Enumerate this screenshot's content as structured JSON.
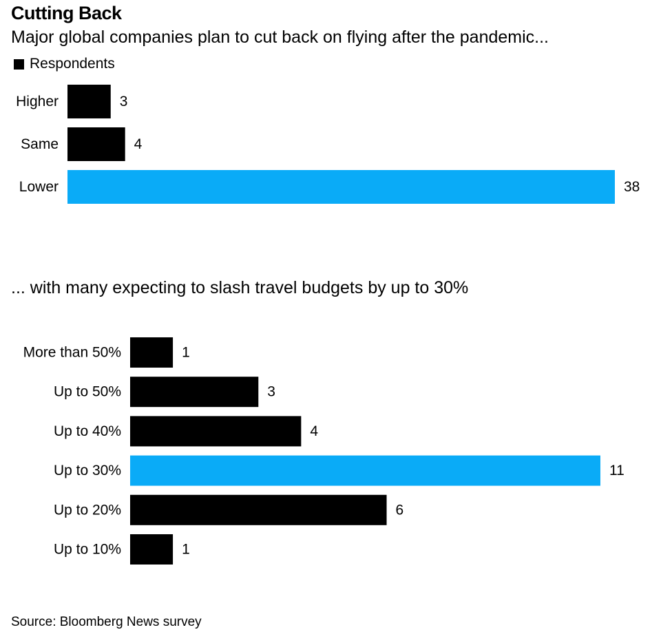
{
  "title": "Cutting Back",
  "subtitle": "Major global companies plan to cut back on flying after the pandemic...",
  "legend": {
    "label": "Respondents"
  },
  "subtitle2": "... with many expecting to slash travel budgets by up to 30%",
  "source": "Source: Bloomberg News survey",
  "colors": {
    "default": "#000000",
    "highlight": "#0aabf7"
  },
  "chart_data": [
    {
      "type": "bar",
      "orientation": "horizontal",
      "title": "",
      "categories": [
        "Higher",
        "Same",
        "Lower"
      ],
      "series": [
        {
          "name": "Respondents",
          "values": [
            3,
            4,
            38
          ]
        }
      ],
      "highlight": "Lower",
      "xlim": [
        0,
        38
      ],
      "grid": false,
      "legend": "top-left"
    },
    {
      "type": "bar",
      "orientation": "horizontal",
      "title": "",
      "categories": [
        "More than 50%",
        "Up to 50%",
        "Up to 40%",
        "Up to 30%",
        "Up to 20%",
        "Up to 10%"
      ],
      "series": [
        {
          "name": "Respondents",
          "values": [
            1,
            3,
            4,
            11,
            6,
            1
          ]
        }
      ],
      "highlight": "Up to 30%",
      "xlim": [
        0,
        11
      ],
      "grid": false
    }
  ]
}
